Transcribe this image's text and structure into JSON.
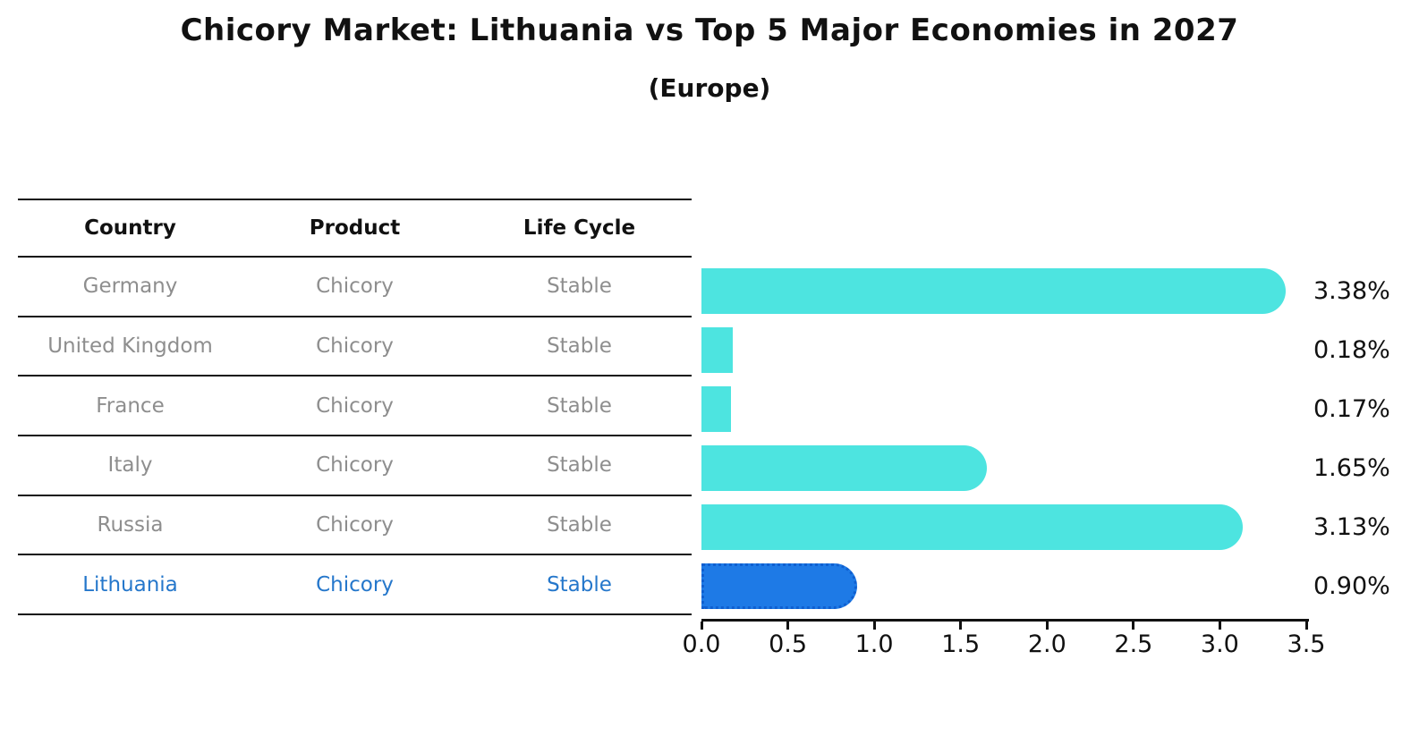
{
  "title": "Chicory Market: Lithuania vs Top 5 Major Economies in 2027",
  "subtitle": "(Europe)",
  "table": {
    "headers": [
      "Country",
      "Product",
      "Life Cycle"
    ]
  },
  "rows": [
    {
      "country": "Germany",
      "product": "Chicory",
      "life_cycle": "Stable",
      "value": 3.38,
      "label": "3.38%",
      "highlight": false
    },
    {
      "country": "United Kingdom",
      "product": "Chicory",
      "life_cycle": "Stable",
      "value": 0.18,
      "label": "0.18%",
      "highlight": false
    },
    {
      "country": "France",
      "product": "Chicory",
      "life_cycle": "Stable",
      "value": 0.17,
      "label": "0.17%",
      "highlight": false
    },
    {
      "country": "Italy",
      "product": "Chicory",
      "life_cycle": "Stable",
      "value": 1.65,
      "label": "1.65%",
      "highlight": false
    },
    {
      "country": "Russia",
      "product": "Chicory",
      "life_cycle": "Stable",
      "value": 3.13,
      "label": "3.13%",
      "highlight": false
    },
    {
      "country": "Lithuania",
      "product": "Chicory",
      "life_cycle": "Stable",
      "value": 0.9,
      "label": "0.90%",
      "highlight": true
    }
  ],
  "chart_data": {
    "type": "bar",
    "orientation": "horizontal",
    "title": "Chicory Market: Lithuania vs Top 5 Major Economies in 2027",
    "subtitle": "(Europe)",
    "categories": [
      "Germany",
      "United Kingdom",
      "France",
      "Italy",
      "Russia",
      "Lithuania"
    ],
    "values": [
      3.38,
      0.18,
      0.17,
      1.65,
      3.13,
      0.9
    ],
    "data_labels": [
      "3.38%",
      "0.18%",
      "0.17%",
      "1.65%",
      "3.13%",
      "0.90%"
    ],
    "xlim": [
      0,
      3.5
    ],
    "xticks": [
      0.0,
      0.5,
      1.0,
      1.5,
      2.0,
      2.5,
      3.0,
      3.5
    ],
    "xtick_labels": [
      "0.0",
      "0.5",
      "1.0",
      "1.5",
      "2.0",
      "2.5",
      "3.0",
      "3.5"
    ],
    "grid": false,
    "legend": "none",
    "bar_color": "#4de4e0",
    "highlight_bar_color": "#1e7ae6",
    "highlight_border_color": "#0f5fd0",
    "highlight_index": 5,
    "highlight_text_color": "#2577cb",
    "table_text_color": "#8e8e8e",
    "axis_color": "#111111"
  }
}
